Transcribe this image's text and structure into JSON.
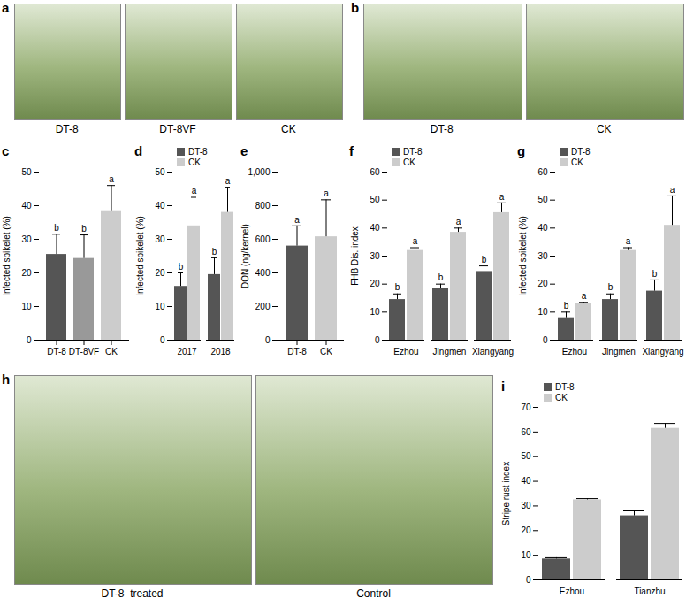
{
  "chart_data": [
    {
      "type": "bar",
      "title": "c",
      "ylabel": "Infected spikelet (%)",
      "categories": [
        "DT-8",
        "DT-8VF",
        "CK"
      ],
      "values": [
        25.5,
        24.3,
        38.5
      ],
      "errors": [
        6,
        7,
        7.5
      ],
      "letters": [
        "b",
        "b",
        "a"
      ],
      "colors": [
        "#555555",
        "#999999",
        "#cccccc"
      ],
      "ylim": [
        0,
        50
      ],
      "yticks": [
        0,
        10,
        20,
        30,
        40,
        50
      ]
    },
    {
      "type": "bar",
      "title": "d",
      "ylabel": "Infected spikelet (%)",
      "categories": [
        "2017",
        "2018"
      ],
      "series": [
        {
          "name": "DT-8",
          "color": "#555555",
          "values": [
            16,
            19.5
          ],
          "errors": [
            4,
            5
          ],
          "letters": [
            "b",
            "b"
          ]
        },
        {
          "name": "CK",
          "color": "#cccccc",
          "values": [
            34,
            38
          ],
          "errors": [
            8.5,
            7.5
          ],
          "letters": [
            "a",
            "a"
          ]
        }
      ],
      "legend": "top-left",
      "ylim": [
        0,
        50
      ],
      "yticks": [
        0,
        10,
        20,
        30,
        40,
        50
      ]
    },
    {
      "type": "bar",
      "title": "e",
      "ylabel": "DON (ng/kernel)",
      "categories": [
        "DT-8",
        "CK"
      ],
      "values": [
        560,
        615
      ],
      "errors": [
        120,
        220
      ],
      "letters": [
        "a",
        "a"
      ],
      "colors": [
        "#555555",
        "#cccccc"
      ],
      "ylim": [
        0,
        1000
      ],
      "yticks": [
        0,
        200,
        400,
        600,
        800,
        1000
      ]
    },
    {
      "type": "bar",
      "title": "f",
      "ylabel": "FHB Dis. index",
      "categories": [
        "Ezhou",
        "Jingmen",
        "Xiangyang"
      ],
      "series": [
        {
          "name": "DT-8",
          "color": "#555555",
          "values": [
            14.5,
            18.5,
            24.5
          ],
          "errors": [
            2,
            1.5,
            2
          ],
          "letters": [
            "b",
            "b",
            "b"
          ]
        },
        {
          "name": "CK",
          "color": "#cccccc",
          "values": [
            32,
            38.5,
            45.5
          ],
          "errors": [
            1,
            1.5,
            3.5
          ],
          "letters": [
            "a",
            "a",
            "a"
          ]
        }
      ],
      "legend": "top-left",
      "ylim": [
        0,
        60
      ],
      "yticks": [
        0,
        10,
        20,
        30,
        40,
        50,
        60
      ]
    },
    {
      "type": "bar",
      "title": "g",
      "ylabel": "Infected spikelet (%)",
      "categories": [
        "Ezhou",
        "Jingmen",
        "Xiangyang"
      ],
      "series": [
        {
          "name": "DT-8",
          "color": "#555555",
          "values": [
            8,
            14.5,
            17.5
          ],
          "errors": [
            2,
            2,
            4
          ],
          "letters": [
            "b",
            "b",
            "b"
          ]
        },
        {
          "name": "CK",
          "color": "#cccccc",
          "values": [
            13,
            32,
            41
          ],
          "errors": [
            0.5,
            1,
            10.5
          ],
          "letters": [
            "a",
            "a",
            "a"
          ]
        }
      ],
      "legend": "top-left",
      "ylim": [
        0,
        60
      ],
      "yticks": [
        0,
        10,
        20,
        30,
        40,
        50,
        60
      ]
    },
    {
      "type": "bar",
      "title": "i",
      "ylabel": "Stripe rust index",
      "categories": [
        "Ezhou",
        "Tianzhu"
      ],
      "series": [
        {
          "name": "DT-8",
          "color": "#555555",
          "values": [
            8.5,
            26
          ],
          "errors": [
            0.5,
            2
          ]
        },
        {
          "name": "CK",
          "color": "#cccccc",
          "values": [
            32.5,
            61.5
          ],
          "errors": [
            0.5,
            2
          ]
        }
      ],
      "legend": "top-left",
      "ylim": [
        0,
        70
      ],
      "yticks": [
        0,
        10,
        20,
        30,
        40,
        50,
        60,
        70
      ]
    }
  ],
  "photos": [
    {
      "title": "a",
      "labels": [
        "DT-8",
        "DT-8VF",
        "CK"
      ]
    },
    {
      "title": "b",
      "labels": [
        "DT-8",
        "CK"
      ]
    },
    {
      "title": "h",
      "labels": [
        "DT-8  treated",
        "Control"
      ]
    }
  ]
}
